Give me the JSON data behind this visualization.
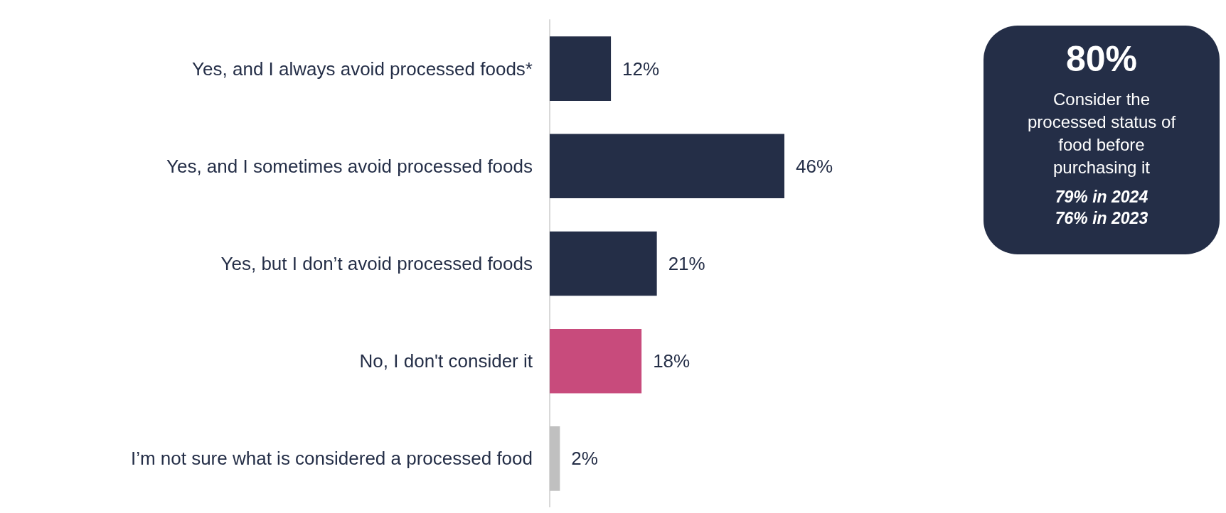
{
  "chart_data": [
    {
      "type": "bar",
      "orientation": "horizontal",
      "categories": [
        "Yes, and I always avoid processed foods*",
        "Yes, and I sometimes avoid processed foods",
        "Yes, but I don’t avoid processed foods",
        "No, I don't consider it",
        "I’m not sure what is considered a processed food"
      ],
      "values": [
        12,
        46,
        21,
        18,
        2
      ],
      "colors": [
        "#242e47",
        "#242e47",
        "#242e47",
        "#c84b7c",
        "#c0c0c0"
      ],
      "value_labels": [
        "12%",
        "46%",
        "21%",
        "18%",
        "2%"
      ],
      "grid": false
    },
    {
      "type": "other",
      "title": "80%",
      "subtitle": "Consider the processed status of food before purchasing it",
      "annotations": [
        "79% in 2024",
        "76% in 2023"
      ],
      "color": "#242e47"
    }
  ]
}
